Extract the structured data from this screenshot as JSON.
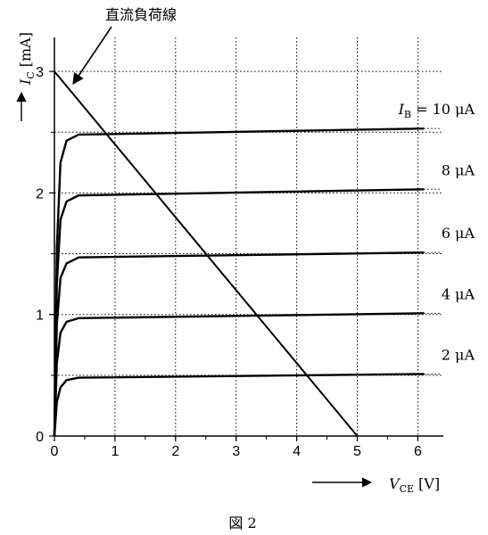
{
  "chart_data": {
    "type": "line",
    "load_line_label": "直流負荷線",
    "x_axis": {
      "symbol": "V",
      "subscript": "CE",
      "unit": "[V]",
      "range": [
        0,
        6.4
      ]
    },
    "y_axis": {
      "symbol": "I",
      "subscript": "C",
      "unit": "[mA]",
      "range": [
        0,
        3.2
      ]
    },
    "x_ticks": [
      0,
      1,
      2,
      3,
      4,
      5,
      6
    ],
    "y_ticks": [
      0,
      1,
      2,
      3
    ],
    "grid": true,
    "series": [
      {
        "name": "I_B = 2 µA",
        "label": "2 μA",
        "points": [
          [
            0,
            0
          ],
          [
            0.04,
            0.28
          ],
          [
            0.1,
            0.4
          ],
          [
            0.2,
            0.46
          ],
          [
            0.4,
            0.48
          ],
          [
            6.1,
            0.51
          ]
        ]
      },
      {
        "name": "I_B = 4 µA",
        "label": "4 μA",
        "points": [
          [
            0,
            0
          ],
          [
            0.04,
            0.6
          ],
          [
            0.1,
            0.85
          ],
          [
            0.2,
            0.94
          ],
          [
            0.4,
            0.97
          ],
          [
            6.1,
            1.01
          ]
        ]
      },
      {
        "name": "I_B = 6 µA",
        "label": "6 μA",
        "points": [
          [
            0,
            0
          ],
          [
            0.04,
            0.92
          ],
          [
            0.1,
            1.3
          ],
          [
            0.2,
            1.42
          ],
          [
            0.4,
            1.47
          ],
          [
            6.1,
            1.51
          ]
        ]
      },
      {
        "name": "I_B = 8 µA",
        "label": "8 μA",
        "points": [
          [
            0,
            0
          ],
          [
            0.04,
            1.25
          ],
          [
            0.1,
            1.78
          ],
          [
            0.2,
            1.93
          ],
          [
            0.4,
            1.98
          ],
          [
            6.1,
            2.03
          ]
        ]
      },
      {
        "name": "I_B = 10 µA",
        "label_prefix": "I",
        "label_sub": "B",
        "label": " = 10 μA",
        "points": [
          [
            0,
            0
          ],
          [
            0.04,
            1.55
          ],
          [
            0.1,
            2.25
          ],
          [
            0.2,
            2.43
          ],
          [
            0.4,
            2.48
          ],
          [
            6.1,
            2.53
          ]
        ]
      }
    ],
    "load_line": {
      "points": [
        [
          0,
          3
        ],
        [
          5,
          0
        ]
      ]
    }
  },
  "caption": "図 2"
}
